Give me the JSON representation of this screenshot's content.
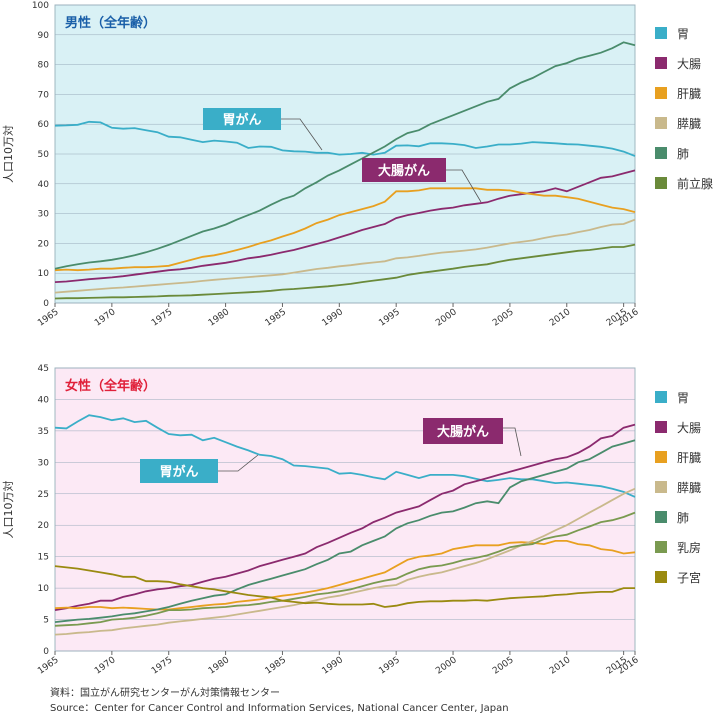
{
  "chart_data": [
    {
      "type": "line",
      "title": "男性（全年齢）",
      "title_color": "#1a5fa8",
      "background": "#d9f1f5",
      "ylabel": "人口10万対",
      "x": [
        1965,
        1966,
        1967,
        1968,
        1969,
        1970,
        1971,
        1972,
        1973,
        1974,
        1975,
        1976,
        1977,
        1978,
        1979,
        1980,
        1981,
        1982,
        1983,
        1984,
        1985,
        1986,
        1987,
        1988,
        1989,
        1990,
        1991,
        1992,
        1993,
        1994,
        1995,
        1996,
        1997,
        1998,
        1999,
        2000,
        2001,
        2002,
        2003,
        2004,
        2005,
        2006,
        2007,
        2008,
        2009,
        2010,
        2011,
        2012,
        2013,
        2014,
        2015,
        2016
      ],
      "xlim": [
        1965,
        2016
      ],
      "xticks": [
        1965,
        1970,
        1975,
        1980,
        1985,
        1990,
        1995,
        2000,
        2005,
        2010,
        2015,
        2016
      ],
      "ylim": [
        0,
        100
      ],
      "yticks": [
        0,
        10,
        20,
        30,
        40,
        50,
        60,
        70,
        80,
        90,
        100
      ],
      "series": [
        {
          "name": "胃",
          "color": "#3aaec8",
          "values": [
            59.5,
            59.6,
            59.8,
            60.8,
            60.6,
            58.8,
            58.5,
            58.7,
            58.0,
            57.3,
            55.8,
            55.6,
            54.8,
            54.0,
            54.5,
            54.2,
            53.8,
            52.0,
            52.5,
            52.4,
            51.2,
            50.9,
            50.8,
            50.4,
            50.4,
            49.8,
            50.0,
            50.4,
            49.8,
            50.4,
            52.8,
            52.9,
            52.6,
            53.6,
            53.6,
            53.4,
            53.0,
            52.0,
            52.5,
            53.2,
            53.2,
            53.5,
            54.0,
            53.8,
            53.6,
            53.3,
            53.2,
            52.8,
            52.4,
            51.8,
            50.8,
            49.3
          ]
        },
        {
          "name": "大腸",
          "color": "#8b2a6e",
          "values": [
            7.0,
            7.2,
            7.6,
            8.0,
            8.3,
            8.6,
            9.0,
            9.5,
            10.0,
            10.5,
            11.0,
            11.3,
            11.8,
            12.5,
            13.0,
            13.5,
            14.2,
            15.0,
            15.5,
            16.2,
            17.0,
            17.8,
            18.8,
            19.8,
            20.8,
            22.0,
            23.2,
            24.5,
            25.5,
            26.5,
            28.5,
            29.5,
            30.2,
            31.0,
            31.6,
            32.0,
            32.8,
            33.3,
            33.8,
            35.0,
            36.0,
            36.5,
            37.0,
            37.5,
            38.5,
            37.5,
            39.0,
            40.5,
            42.0,
            42.5,
            43.5,
            44.5
          ]
        },
        {
          "name": "肝臓",
          "color": "#e8a020",
          "values": [
            11.0,
            11.2,
            11.0,
            11.2,
            11.5,
            11.5,
            11.8,
            12.0,
            12.0,
            12.2,
            12.5,
            13.5,
            14.5,
            15.5,
            16.0,
            16.8,
            17.8,
            18.8,
            20.0,
            21.0,
            22.3,
            23.5,
            25.0,
            26.8,
            28.0,
            29.5,
            30.5,
            31.5,
            32.5,
            34.0,
            37.5,
            37.5,
            37.8,
            38.5,
            38.5,
            38.5,
            38.5,
            38.5,
            38.0,
            38.0,
            37.8,
            37.0,
            36.5,
            36.0,
            36.0,
            35.5,
            35.0,
            34.0,
            33.0,
            32.0,
            31.5,
            30.5
          ]
        },
        {
          "name": "膵臓",
          "color": "#c9b98c",
          "values": [
            3.5,
            3.8,
            4.1,
            4.4,
            4.7,
            5.0,
            5.2,
            5.5,
            5.8,
            6.1,
            6.4,
            6.7,
            7.0,
            7.4,
            7.8,
            8.1,
            8.4,
            8.7,
            9.0,
            9.3,
            9.6,
            10.2,
            10.8,
            11.4,
            11.8,
            12.3,
            12.7,
            13.2,
            13.6,
            14.0,
            15.0,
            15.3,
            15.8,
            16.4,
            16.9,
            17.2,
            17.6,
            18.0,
            18.6,
            19.3,
            20.0,
            20.5,
            21.0,
            21.8,
            22.5,
            23.0,
            23.8,
            24.5,
            25.5,
            26.3,
            26.5,
            28.0
          ]
        },
        {
          "name": "肺",
          "color": "#4a8c6c",
          "values": [
            11.5,
            12.3,
            13.0,
            13.6,
            14.0,
            14.5,
            15.2,
            16.0,
            17.0,
            18.2,
            19.5,
            21.0,
            22.5,
            24.0,
            25.0,
            26.3,
            28.0,
            29.5,
            31.0,
            33.0,
            34.8,
            36.0,
            38.5,
            40.5,
            42.8,
            44.5,
            46.5,
            48.5,
            50.5,
            52.5,
            55.0,
            57.0,
            58.0,
            60.0,
            61.5,
            63.0,
            64.5,
            66.0,
            67.5,
            68.5,
            72.0,
            74.0,
            75.5,
            77.5,
            79.5,
            80.5,
            82.0,
            83.0,
            84.0,
            85.5,
            87.5,
            86.5
          ]
        },
        {
          "name": "前立腺",
          "color": "#6a8a3a",
          "values": [
            1.5,
            1.6,
            1.6,
            1.7,
            1.8,
            1.9,
            1.9,
            2.0,
            2.1,
            2.2,
            2.4,
            2.5,
            2.6,
            2.8,
            3.0,
            3.2,
            3.4,
            3.6,
            3.8,
            4.1,
            4.5,
            4.7,
            5.0,
            5.3,
            5.6,
            6.0,
            6.4,
            7.0,
            7.5,
            8.0,
            8.5,
            9.4,
            10.0,
            10.5,
            11.0,
            11.5,
            12.1,
            12.6,
            13.0,
            13.8,
            14.5,
            15.0,
            15.5,
            16.0,
            16.5,
            17.0,
            17.5,
            17.8,
            18.3,
            18.8,
            18.8,
            19.6
          ]
        }
      ],
      "annotations": [
        {
          "text": "胃がん",
          "color": "#3aaec8"
        },
        {
          "text": "大腸がん",
          "color": "#8b2a6e"
        }
      ]
    },
    {
      "type": "line",
      "title": "女性（全年齢）",
      "title_color": "#e0203a",
      "background": "#fce9f5",
      "ylabel": "人口10万対",
      "x": [
        1965,
        1966,
        1967,
        1968,
        1969,
        1970,
        1971,
        1972,
        1973,
        1974,
        1975,
        1976,
        1977,
        1978,
        1979,
        1980,
        1981,
        1982,
        1983,
        1984,
        1985,
        1986,
        1987,
        1988,
        1989,
        1990,
        1991,
        1992,
        1993,
        1994,
        1995,
        1996,
        1997,
        1998,
        1999,
        2000,
        2001,
        2002,
        2003,
        2004,
        2005,
        2006,
        2007,
        2008,
        2009,
        2010,
        2011,
        2012,
        2013,
        2014,
        2015,
        2016
      ],
      "xlim": [
        1965,
        2016
      ],
      "xticks": [
        1965,
        1970,
        1975,
        1980,
        1985,
        1990,
        1995,
        2000,
        2005,
        2010,
        2015,
        2016
      ],
      "ylim": [
        0,
        45
      ],
      "yticks": [
        0,
        5,
        10,
        15,
        20,
        25,
        30,
        35,
        40,
        45
      ],
      "series": [
        {
          "name": "胃",
          "color": "#3aaec8",
          "values": [
            35.5,
            35.4,
            36.5,
            37.5,
            37.2,
            36.7,
            37.0,
            36.4,
            36.6,
            35.5,
            34.5,
            34.3,
            34.4,
            33.5,
            33.9,
            33.2,
            32.5,
            31.9,
            31.2,
            31.0,
            30.5,
            29.5,
            29.4,
            29.2,
            29.0,
            28.2,
            28.3,
            28.0,
            27.6,
            27.3,
            28.5,
            28.0,
            27.5,
            28.0,
            28.0,
            28.0,
            27.8,
            27.4,
            27.0,
            27.2,
            27.5,
            27.3,
            27.3,
            27.0,
            26.7,
            26.8,
            26.6,
            26.4,
            26.2,
            25.8,
            25.3,
            24.5
          ]
        },
        {
          "name": "大腸",
          "color": "#8b2a6e",
          "values": [
            6.5,
            6.8,
            7.2,
            7.5,
            8.0,
            8.0,
            8.6,
            9.0,
            9.5,
            9.8,
            10.0,
            10.3,
            10.5,
            11.0,
            11.5,
            11.8,
            12.3,
            12.8,
            13.5,
            14.0,
            14.5,
            15.0,
            15.5,
            16.5,
            17.2,
            18.0,
            18.8,
            19.5,
            20.5,
            21.2,
            22.0,
            22.5,
            23.0,
            24.0,
            25.0,
            25.5,
            26.5,
            27.0,
            27.5,
            28.0,
            28.5,
            29.0,
            29.5,
            30.0,
            30.5,
            30.8,
            31.5,
            32.5,
            33.8,
            34.2,
            35.5,
            36.0
          ]
        },
        {
          "name": "肝臓",
          "color": "#e8a020",
          "values": [
            6.8,
            6.9,
            6.8,
            7.0,
            7.0,
            6.8,
            6.9,
            6.8,
            6.7,
            6.6,
            6.6,
            6.8,
            7.0,
            7.2,
            7.4,
            7.5,
            7.8,
            8.0,
            8.2,
            8.5,
            8.8,
            9.0,
            9.3,
            9.6,
            10.0,
            10.5,
            11.0,
            11.5,
            12.0,
            12.5,
            13.5,
            14.5,
            15.0,
            15.2,
            15.5,
            16.2,
            16.5,
            16.8,
            16.8,
            16.8,
            17.2,
            17.3,
            17.2,
            17.0,
            17.5,
            17.5,
            17.0,
            16.8,
            16.2,
            16.0,
            15.5,
            15.7
          ]
        },
        {
          "name": "膵臓",
          "color": "#c9b98c",
          "values": [
            2.6,
            2.7,
            2.9,
            3.0,
            3.2,
            3.3,
            3.6,
            3.8,
            4.0,
            4.2,
            4.5,
            4.7,
            4.9,
            5.1,
            5.3,
            5.5,
            5.8,
            6.1,
            6.4,
            6.7,
            7.0,
            7.3,
            7.7,
            8.1,
            8.5,
            8.8,
            9.2,
            9.6,
            10.0,
            10.3,
            10.5,
            11.3,
            11.8,
            12.2,
            12.5,
            13.0,
            13.5,
            14.0,
            14.6,
            15.3,
            16.0,
            16.8,
            17.5,
            18.3,
            19.2,
            20.0,
            21.0,
            22.0,
            23.0,
            24.0,
            25.0,
            25.8
          ]
        },
        {
          "name": "肺",
          "color": "#4a8c6c",
          "values": [
            4.6,
            4.8,
            5.0,
            5.1,
            5.3,
            5.5,
            5.8,
            6.0,
            6.3,
            6.6,
            7.0,
            7.5,
            8.0,
            8.4,
            8.8,
            9.0,
            9.8,
            10.5,
            11.0,
            11.5,
            12.0,
            12.5,
            13.0,
            13.8,
            14.5,
            15.5,
            15.8,
            16.8,
            17.5,
            18.2,
            19.5,
            20.3,
            20.8,
            21.5,
            22.0,
            22.2,
            22.8,
            23.5,
            23.8,
            23.5,
            26.0,
            27.0,
            27.5,
            28.0,
            28.5,
            29.0,
            30.0,
            30.5,
            31.5,
            32.5,
            33.0,
            33.5
          ]
        },
        {
          "name": "乳房",
          "color": "#7a9a50",
          "values": [
            4.0,
            4.1,
            4.2,
            4.4,
            4.6,
            5.0,
            5.1,
            5.3,
            5.6,
            6.0,
            6.5,
            6.5,
            6.6,
            6.8,
            6.9,
            7.0,
            7.2,
            7.3,
            7.5,
            7.8,
            8.0,
            8.3,
            8.6,
            9.0,
            9.2,
            9.5,
            9.8,
            10.3,
            10.8,
            11.2,
            11.5,
            12.3,
            13.0,
            13.4,
            13.6,
            14.0,
            14.5,
            14.8,
            15.2,
            15.8,
            16.5,
            16.8,
            17.0,
            17.8,
            18.2,
            18.5,
            19.2,
            19.8,
            20.5,
            20.8,
            21.3,
            22.0
          ]
        },
        {
          "name": "子宮",
          "color": "#9a8a10",
          "values": [
            13.5,
            13.3,
            13.1,
            12.8,
            12.5,
            12.2,
            11.8,
            11.8,
            11.1,
            11.1,
            11.0,
            10.6,
            10.3,
            10.0,
            9.8,
            9.5,
            9.2,
            8.9,
            8.7,
            8.5,
            8.0,
            7.8,
            7.6,
            7.7,
            7.5,
            7.4,
            7.4,
            7.4,
            7.5,
            7.0,
            7.2,
            7.6,
            7.8,
            7.9,
            7.9,
            8.0,
            8.0,
            8.1,
            8.0,
            8.2,
            8.4,
            8.5,
            8.6,
            8.7,
            8.9,
            9.0,
            9.2,
            9.3,
            9.4,
            9.4,
            10.0,
            10.0
          ]
        }
      ],
      "annotations": [
        {
          "text": "大腸がん",
          "color": "#8b2a6e"
        },
        {
          "text": "胃がん",
          "color": "#3aaec8"
        }
      ]
    }
  ],
  "source": [
    "資料：国立がん研究センターがん対策情報センター",
    "Source：Center for Cancer Control and Information Services, National Cancer Center, Japan"
  ]
}
